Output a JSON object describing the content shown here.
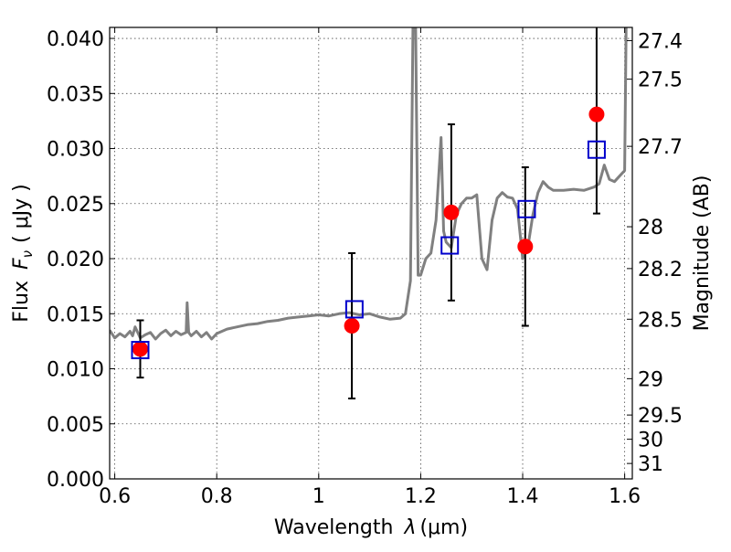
{
  "chart_data": {
    "type": "scatter",
    "xlabel": "Wavelength",
    "xlabel_symbol": "λ",
    "xlabel_unit": "(μm)",
    "ylabel": "Flux",
    "ylabel_symbol": "F",
    "ylabel_sub": "ν",
    "ylabel_unit": "( μJy )",
    "y2label": "Magnitude (AB)",
    "xlim": [
      0.59,
      1.615
    ],
    "ylim": [
      0.0,
      0.041
    ],
    "grid": true,
    "x_ticks": [
      {
        "value": 0.6,
        "label": "0.6"
      },
      {
        "value": 0.8,
        "label": "0.8"
      },
      {
        "value": 1.0,
        "label": "1"
      },
      {
        "value": 1.2,
        "label": "1.2"
      },
      {
        "value": 1.4,
        "label": "1.4"
      },
      {
        "value": 1.6,
        "label": "1.6"
      }
    ],
    "y_ticks": [
      {
        "value": 0.0,
        "label": "0.000"
      },
      {
        "value": 0.005,
        "label": "0.005"
      },
      {
        "value": 0.01,
        "label": "0.010"
      },
      {
        "value": 0.015,
        "label": "0.015"
      },
      {
        "value": 0.02,
        "label": "0.020"
      },
      {
        "value": 0.025,
        "label": "0.025"
      },
      {
        "value": 0.03,
        "label": "0.030"
      },
      {
        "value": 0.035,
        "label": "0.035"
      },
      {
        "value": 0.04,
        "label": "0.040"
      }
    ],
    "y2_ticks": [
      {
        "flux": 0.0398,
        "label": "27.4"
      },
      {
        "flux": 0.0363,
        "label": "27.5"
      },
      {
        "flux": 0.0302,
        "label": "27.7"
      },
      {
        "flux": 0.0229,
        "label": "28"
      },
      {
        "flux": 0.0191,
        "label": "28.2"
      },
      {
        "flux": 0.0145,
        "label": "28.5"
      },
      {
        "flux": 0.0091,
        "label": "29"
      },
      {
        "flux": 0.0058,
        "label": "29.5"
      },
      {
        "flux": 0.0036,
        "label": "30"
      },
      {
        "flux": 0.0014,
        "label": "31"
      }
    ],
    "series": [
      {
        "kind": "line",
        "color": "#808080",
        "x": [
          0.59,
          0.6,
          0.61,
          0.62,
          0.63,
          0.635,
          0.64,
          0.65,
          0.66,
          0.67,
          0.68,
          0.69,
          0.7,
          0.71,
          0.72,
          0.73,
          0.74,
          0.742,
          0.745,
          0.75,
          0.76,
          0.77,
          0.78,
          0.79,
          0.8,
          0.82,
          0.84,
          0.86,
          0.88,
          0.9,
          0.92,
          0.94,
          0.96,
          0.98,
          1.0,
          1.02,
          1.04,
          1.06,
          1.08,
          1.1,
          1.12,
          1.14,
          1.16,
          1.17,
          1.18,
          1.185,
          1.19,
          1.195,
          1.2,
          1.21,
          1.22,
          1.23,
          1.24,
          1.245,
          1.25,
          1.26,
          1.27,
          1.28,
          1.29,
          1.3,
          1.31,
          1.32,
          1.33,
          1.34,
          1.35,
          1.36,
          1.37,
          1.38,
          1.39,
          1.4,
          1.41,
          1.42,
          1.43,
          1.44,
          1.45,
          1.46,
          1.48,
          1.5,
          1.52,
          1.54,
          1.55,
          1.56,
          1.57,
          1.58,
          1.59,
          1.6,
          1.603,
          1.607,
          1.61
        ],
        "y": [
          0.0135,
          0.0128,
          0.0132,
          0.0129,
          0.0134,
          0.013,
          0.0138,
          0.0128,
          0.0131,
          0.0133,
          0.0127,
          0.0132,
          0.0135,
          0.013,
          0.0134,
          0.0131,
          0.0133,
          0.016,
          0.0133,
          0.013,
          0.0134,
          0.0129,
          0.0133,
          0.0127,
          0.0132,
          0.0136,
          0.0138,
          0.014,
          0.0141,
          0.0143,
          0.0144,
          0.0146,
          0.0147,
          0.0148,
          0.0149,
          0.0148,
          0.015,
          0.0151,
          0.0149,
          0.015,
          0.0147,
          0.0145,
          0.0146,
          0.015,
          0.018,
          0.0415,
          0.0415,
          0.0185,
          0.0185,
          0.02,
          0.0205,
          0.0235,
          0.031,
          0.0225,
          0.0215,
          0.021,
          0.024,
          0.025,
          0.0255,
          0.0255,
          0.0258,
          0.02,
          0.019,
          0.0235,
          0.0255,
          0.026,
          0.0256,
          0.0255,
          0.0245,
          0.02,
          0.021,
          0.024,
          0.026,
          0.027,
          0.0265,
          0.0262,
          0.0262,
          0.0263,
          0.0262,
          0.0265,
          0.0268,
          0.0285,
          0.0272,
          0.027,
          0.0275,
          0.028,
          0.0415,
          0.0415,
          0.0415
        ]
      },
      {
        "kind": "points",
        "marker": "circle",
        "color": "#ff0000",
        "x": [
          0.65,
          1.065,
          1.26,
          1.405,
          1.545
        ],
        "y": [
          0.0118,
          0.0139,
          0.0242,
          0.0211,
          0.0331
        ],
        "yerr": [
          0.0026,
          0.0066,
          0.008,
          0.0072,
          0.009
        ]
      },
      {
        "kind": "points",
        "marker": "square",
        "color": "#0000cc",
        "x": [
          0.65,
          1.07,
          1.257,
          1.408,
          1.545
        ],
        "y": [
          0.0117,
          0.0154,
          0.0212,
          0.0245,
          0.0299
        ]
      }
    ]
  }
}
